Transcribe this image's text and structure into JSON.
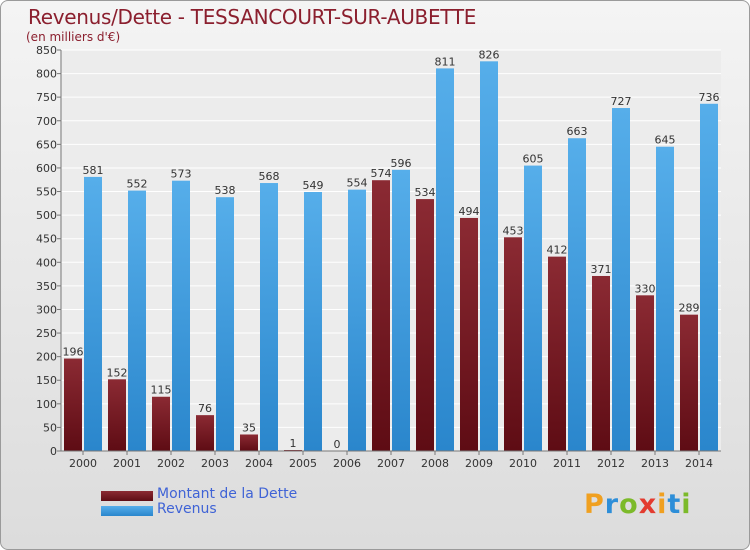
{
  "title": "Revenus/Dette - TESSANCOURT-SUR-AUBETTE",
  "subtitle": "(en milliers d'€)",
  "brand": "Proxiti",
  "colors": {
    "dette": "#7a1a22",
    "revenus": "#3d9be0",
    "title": "#8b1f2e",
    "legend_text": "#3f63d6"
  },
  "chart_data": {
    "type": "bar",
    "categories": [
      "2000",
      "2001",
      "2002",
      "2003",
      "2004",
      "2005",
      "2006",
      "2007",
      "2008",
      "2009",
      "2010",
      "2011",
      "2012",
      "2013",
      "2014"
    ],
    "series": [
      {
        "name": "Montant de la Dette",
        "values": [
          196,
          152,
          115,
          76,
          35,
          1,
          0,
          574,
          534,
          494,
          453,
          412,
          371,
          330,
          289
        ],
        "labels": [
          "196",
          "152",
          "115",
          "76",
          "35",
          "1",
          "0",
          "574",
          "534",
          "494",
          "453",
          "412",
          "371",
          "330",
          "289"
        ]
      },
      {
        "name": "Revenus",
        "values": [
          581,
          552,
          573,
          538,
          568,
          549,
          554,
          596,
          811,
          826,
          605,
          663,
          727,
          645,
          736
        ],
        "labels": [
          "581",
          "552",
          "573",
          "538",
          "568",
          "549",
          "554",
          "596",
          "811",
          "826",
          "605",
          "663",
          "727",
          "645",
          "736"
        ]
      }
    ],
    "ylim": [
      0,
      850
    ],
    "yticks": [
      0,
      50,
      100,
      150,
      200,
      250,
      300,
      350,
      400,
      450,
      500,
      550,
      600,
      650,
      700,
      750,
      800,
      850
    ],
    "grid": true,
    "legend": "bottom-left"
  }
}
